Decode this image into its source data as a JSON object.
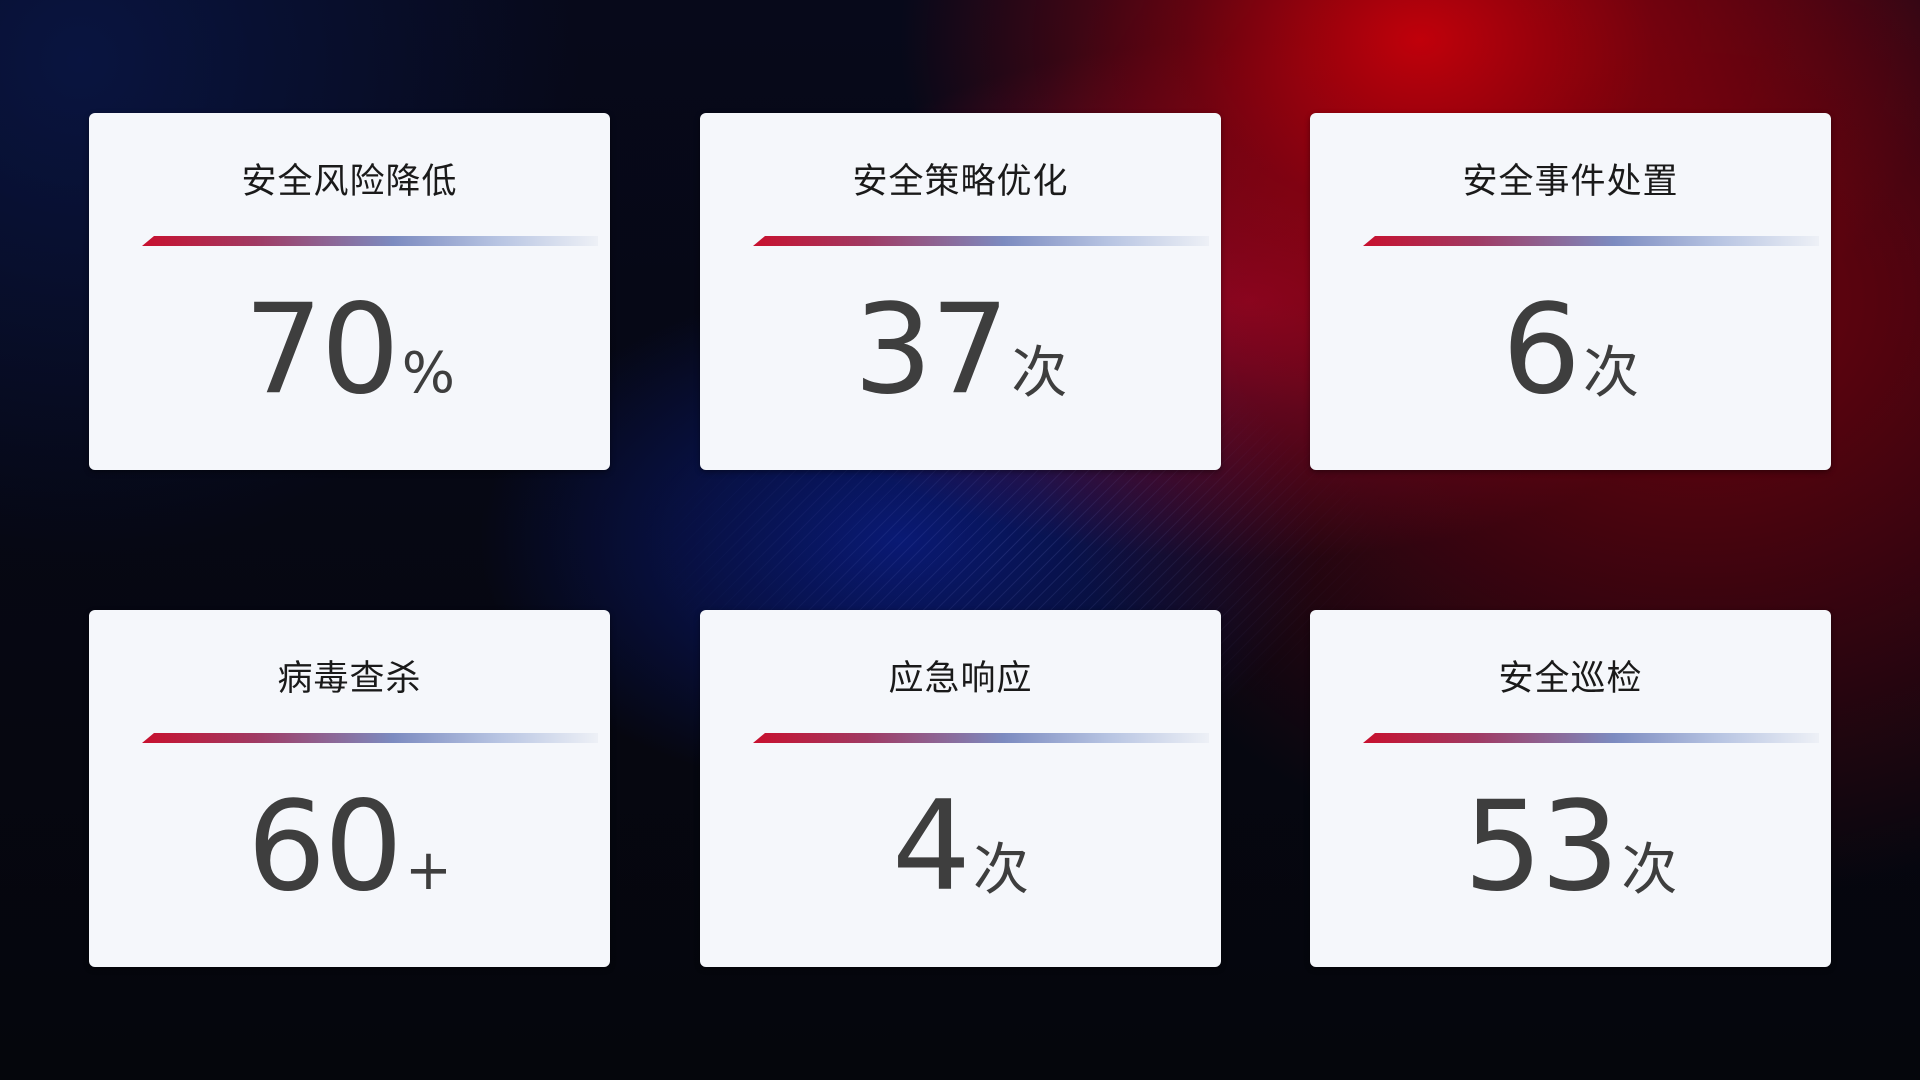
{
  "cards": [
    {
      "title": "安全风险降低",
      "value": "70",
      "unit": "%"
    },
    {
      "title": "安全策略优化",
      "value": "37",
      "unit": "次"
    },
    {
      "title": "安全事件处置",
      "value": "6",
      "unit": "次"
    },
    {
      "title": "病毒查杀",
      "value": "60",
      "unit": "+"
    },
    {
      "title": "应急响应",
      "value": "4",
      "unit": "次"
    },
    {
      "title": "安全巡检",
      "value": "53",
      "unit": "次"
    }
  ],
  "colors": {
    "accent_red": "#c8102e",
    "accent_blue": "#7c8bc0",
    "card_bg": "#f5f7fb",
    "value_text": "#3e3e3e"
  }
}
